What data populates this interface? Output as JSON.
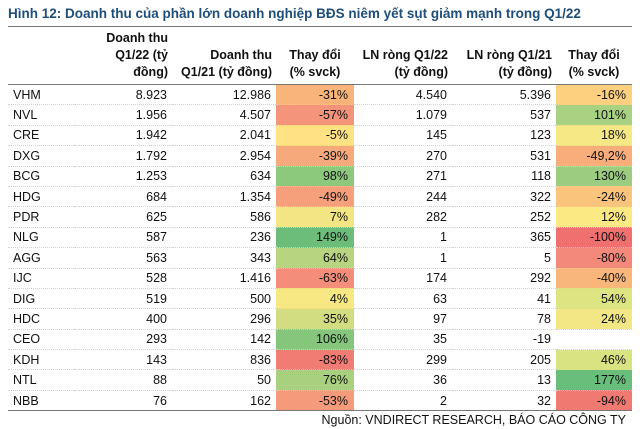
{
  "title": "Hình 12: Doanh thu của phần lớn doanh nghiệp BĐS niêm yết sụt giảm mạnh trong Q1/22",
  "headers": {
    "rev_q122_line1": "Doanh thu",
    "rev_q122_line2": "Q1/22 (tỷ đồng)",
    "rev_q121_line1": "Doanh thu",
    "rev_q121_line2": "Q1/21 (tỷ đồng)",
    "rev_change_line1": "Thay đổi",
    "rev_change_line2": "(% svck)",
    "np_q122_line1": "LN ròng Q1/22",
    "np_q122_line2": "(tỷ đồng)",
    "np_q121_line1": "LN ròng Q1/21",
    "np_q121_line2": "(tỷ đồng)",
    "np_change_line1": "Thay đổi",
    "np_change_line2": "(% svck)"
  },
  "rows": [
    {
      "ticker": "VHM",
      "rev_q122": "8.923",
      "rev_q121": "12.986",
      "rev_chg": "-31%",
      "rev_chg_color": "#f9b47a",
      "np_q122": "4.540",
      "np_q121": "5.396",
      "np_chg": "-16%",
      "np_chg_color": "#fcd07f"
    },
    {
      "ticker": "NVL",
      "rev_q122": "1.956",
      "rev_q121": "4.507",
      "rev_chg": "-57%",
      "rev_chg_color": "#f4947a",
      "np_q122": "1.079",
      "np_q121": "537",
      "np_chg": "101%",
      "np_chg_color": "#a8d181"
    },
    {
      "ticker": "CRE",
      "rev_q122": "1.942",
      "rev_q121": "2.041",
      "rev_chg": "-5%",
      "rev_chg_color": "#fee283",
      "np_q122": "145",
      "np_q121": "123",
      "np_chg": "18%",
      "np_chg_color": "#f6e884"
    },
    {
      "ticker": "DXG",
      "rev_q122": "1.792",
      "rev_q121": "2.954",
      "rev_chg": "-39%",
      "rev_chg_color": "#f6aa7b",
      "np_q122": "270",
      "np_q121": "531",
      "np_chg": "-49,2%",
      "np_chg_color": "#f8ad7a"
    },
    {
      "ticker": "BCG",
      "rev_q122": "1.253",
      "rev_q121": "634",
      "rev_chg": "98%",
      "rev_chg_color": "#8dc97d",
      "np_q122": "271",
      "np_q121": "118",
      "np_chg": "130%",
      "np_chg_color": "#9ccc7f"
    },
    {
      "ticker": "HDG",
      "rev_q122": "684",
      "rev_q121": "1.354",
      "rev_chg": "-49%",
      "rev_chg_color": "#f59f7b",
      "np_q122": "244",
      "np_q121": "322",
      "np_chg": "-24%",
      "np_chg_color": "#fbc47d"
    },
    {
      "ticker": "PDR",
      "rev_q122": "625",
      "rev_q121": "586",
      "rev_chg": "7%",
      "rev_chg_color": "#f3e583",
      "np_q122": "282",
      "np_q121": "252",
      "np_chg": "12%",
      "np_chg_color": "#fbe983"
    },
    {
      "ticker": "NLG",
      "rev_q122": "587",
      "rev_q121": "236",
      "rev_chg": "149%",
      "rev_chg_color": "#6cbd79",
      "np_q122": "1",
      "np_q121": "365",
      "np_chg": "-100%",
      "np_chg_color": "#f07070"
    },
    {
      "ticker": "AGG",
      "rev_q122": "563",
      "rev_q121": "343",
      "rev_chg": "64%",
      "rev_chg_color": "#b7d580",
      "np_q122": "1",
      "np_q121": "5",
      "np_chg": "-80%",
      "np_chg_color": "#f3897a"
    },
    {
      "ticker": "IJC",
      "rev_q122": "528",
      "rev_q121": "1.416",
      "rev_chg": "-63%",
      "rev_chg_color": "#f48d79",
      "np_q122": "174",
      "np_q121": "292",
      "np_chg": "-40%",
      "np_chg_color": "#f9b67b"
    },
    {
      "ticker": "DIG",
      "rev_q122": "519",
      "rev_q121": "500",
      "rev_chg": "4%",
      "rev_chg_color": "#f7e883",
      "np_q122": "63",
      "np_q121": "41",
      "np_chg": "54%",
      "np_chg_color": "#dde582"
    },
    {
      "ticker": "HDC",
      "rev_q122": "400",
      "rev_q121": "296",
      "rev_chg": "35%",
      "rev_chg_color": "#d1dd80",
      "np_q122": "97",
      "np_q121": "78",
      "np_chg": "24%",
      "np_chg_color": "#f2e784"
    },
    {
      "ticker": "CEO",
      "rev_q122": "293",
      "rev_q121": "142",
      "rev_chg": "106%",
      "rev_chg_color": "#85c67c",
      "np_q122": "35",
      "np_q121": "-19",
      "np_chg": "",
      "np_chg_color": ""
    },
    {
      "ticker": "KDH",
      "rev_q122": "143",
      "rev_q121": "836",
      "rev_chg": "-83%",
      "rev_chg_color": "#f17c73",
      "np_q122": "299",
      "np_q121": "205",
      "np_chg": "46%",
      "np_chg_color": "#d9e381"
    },
    {
      "ticker": "NTL",
      "rev_q122": "88",
      "rev_q121": "50",
      "rev_chg": "76%",
      "rev_chg_color": "#a9d07f",
      "np_q122": "36",
      "np_q121": "13",
      "np_chg": "177%",
      "np_chg_color": "#6abe7b"
    },
    {
      "ticker": "NBB",
      "rev_q122": "76",
      "rev_q121": "162",
      "rev_chg": "-53%",
      "rev_chg_color": "#f59a7b",
      "np_q122": "2",
      "np_q121": "32",
      "np_chg": "-94%",
      "np_chg_color": "#f07a72"
    }
  ],
  "source": "Nguồn: VNDIRECT RESEARCH, BÁO CÁO CÔNG TY"
}
